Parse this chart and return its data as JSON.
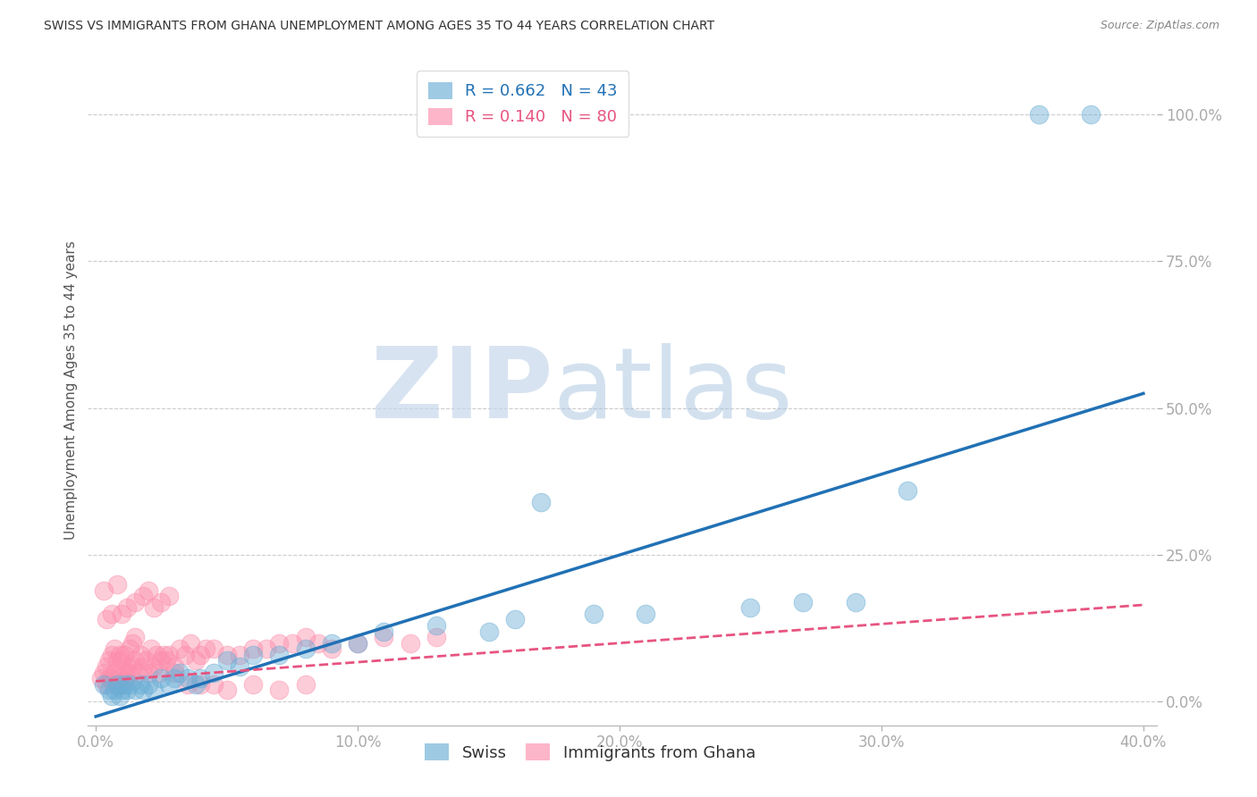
{
  "title": "SWISS VS IMMIGRANTS FROM GHANA UNEMPLOYMENT AMONG AGES 35 TO 44 YEARS CORRELATION CHART",
  "source": "Source: ZipAtlas.com",
  "ylabel": "Unemployment Among Ages 35 to 44 years",
  "xlim": [
    -0.003,
    0.405
  ],
  "ylim": [
    -0.04,
    1.1
  ],
  "xticks": [
    0.0,
    0.1,
    0.2,
    0.3,
    0.4
  ],
  "xtick_labels": [
    "0.0%",
    "10.0%",
    "20.0%",
    "30.0%",
    "40.0%"
  ],
  "ytick_labels": [
    "100.0%",
    "75.0%",
    "50.0%",
    "25.0%",
    "0.0%"
  ],
  "ytick_values": [
    1.0,
    0.75,
    0.5,
    0.25,
    0.0
  ],
  "swiss_color": "#6baed6",
  "ghana_color": "#fc8eac",
  "swiss_R": 0.662,
  "swiss_N": 43,
  "ghana_R": 0.14,
  "ghana_N": 80,
  "background_color": "#ffffff",
  "grid_color": "#cccccc",
  "blue_line_x0": 0.0,
  "blue_line_y0": -0.025,
  "blue_line_x1": 0.4,
  "blue_line_y1": 0.525,
  "pink_line_x0": 0.0,
  "pink_line_y0": 0.035,
  "pink_line_x1": 0.4,
  "pink_line_y1": 0.165,
  "swiss_scatter_x": [
    0.003,
    0.005,
    0.006,
    0.007,
    0.008,
    0.009,
    0.01,
    0.011,
    0.012,
    0.013,
    0.015,
    0.017,
    0.018,
    0.02,
    0.022,
    0.025,
    0.028,
    0.03,
    0.032,
    0.035,
    0.038,
    0.04,
    0.045,
    0.05,
    0.055,
    0.06,
    0.07,
    0.08,
    0.09,
    0.1,
    0.11,
    0.13,
    0.15,
    0.16,
    0.17,
    0.19,
    0.21,
    0.25,
    0.27,
    0.29,
    0.31,
    0.36,
    0.38
  ],
  "swiss_scatter_y": [
    0.03,
    0.02,
    0.01,
    0.02,
    0.03,
    0.01,
    0.02,
    0.03,
    0.02,
    0.03,
    0.02,
    0.03,
    0.02,
    0.03,
    0.02,
    0.04,
    0.03,
    0.04,
    0.05,
    0.04,
    0.03,
    0.04,
    0.05,
    0.07,
    0.06,
    0.08,
    0.08,
    0.09,
    0.1,
    0.1,
    0.12,
    0.13,
    0.12,
    0.14,
    0.34,
    0.15,
    0.15,
    0.16,
    0.17,
    0.17,
    0.36,
    1.0,
    1.0
  ],
  "ghana_scatter_x": [
    0.002,
    0.003,
    0.004,
    0.004,
    0.005,
    0.005,
    0.006,
    0.006,
    0.007,
    0.007,
    0.008,
    0.008,
    0.009,
    0.009,
    0.01,
    0.01,
    0.011,
    0.011,
    0.012,
    0.012,
    0.013,
    0.013,
    0.014,
    0.014,
    0.015,
    0.015,
    0.016,
    0.017,
    0.018,
    0.019,
    0.02,
    0.021,
    0.022,
    0.023,
    0.024,
    0.025,
    0.026,
    0.027,
    0.028,
    0.03,
    0.032,
    0.034,
    0.036,
    0.038,
    0.04,
    0.042,
    0.045,
    0.05,
    0.055,
    0.06,
    0.065,
    0.07,
    0.075,
    0.08,
    0.085,
    0.09,
    0.1,
    0.11,
    0.12,
    0.13,
    0.003,
    0.004,
    0.006,
    0.008,
    0.01,
    0.012,
    0.015,
    0.018,
    0.02,
    0.022,
    0.025,
    0.028,
    0.03,
    0.035,
    0.04,
    0.045,
    0.05,
    0.06,
    0.07,
    0.08
  ],
  "ghana_scatter_y": [
    0.04,
    0.05,
    0.03,
    0.06,
    0.04,
    0.07,
    0.04,
    0.08,
    0.05,
    0.09,
    0.03,
    0.07,
    0.04,
    0.08,
    0.03,
    0.07,
    0.05,
    0.08,
    0.04,
    0.06,
    0.05,
    0.09,
    0.06,
    0.1,
    0.07,
    0.11,
    0.05,
    0.08,
    0.06,
    0.07,
    0.05,
    0.09,
    0.06,
    0.08,
    0.05,
    0.07,
    0.08,
    0.07,
    0.08,
    0.06,
    0.09,
    0.08,
    0.1,
    0.07,
    0.08,
    0.09,
    0.09,
    0.08,
    0.08,
    0.09,
    0.09,
    0.1,
    0.1,
    0.11,
    0.1,
    0.09,
    0.1,
    0.11,
    0.1,
    0.11,
    0.19,
    0.14,
    0.15,
    0.2,
    0.15,
    0.16,
    0.17,
    0.18,
    0.19,
    0.16,
    0.17,
    0.18,
    0.05,
    0.03,
    0.03,
    0.03,
    0.02,
    0.03,
    0.02,
    0.03
  ]
}
